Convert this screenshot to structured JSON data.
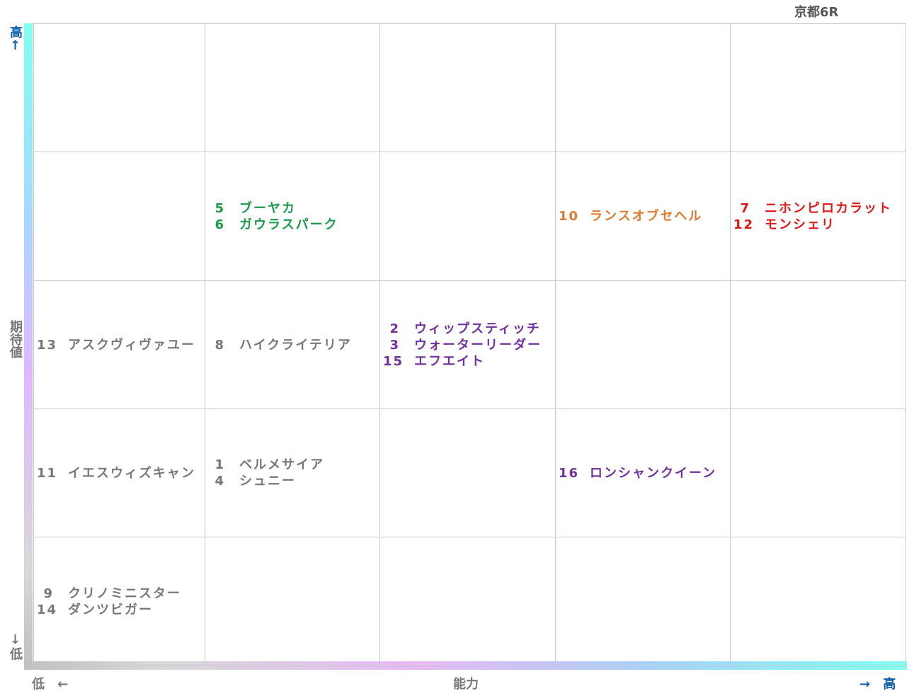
{
  "title": "京都6R",
  "y_axis": {
    "high": "高↑",
    "label": "期待値",
    "low": "↓低"
  },
  "x_axis": {
    "low": "低 ←",
    "label": "能力",
    "high": "→ 高"
  },
  "grid": {
    "rows": [
      [
        [],
        [],
        [],
        [],
        []
      ],
      [
        [],
        [
          {
            "number": 5,
            "name": "ブーヤカ",
            "color": "#1a9a4a"
          },
          {
            "number": 6,
            "name": "ガウラスパーク",
            "color": "#1a9a4a"
          }
        ],
        [],
        [
          {
            "number": 10,
            "name": "ランスオブセヘル",
            "color": "#e07a30"
          }
        ],
        [
          {
            "number": 7,
            "name": "ニホンピロカラット",
            "color": "#e01818"
          },
          {
            "number": 12,
            "name": "モンシェリ",
            "color": "#e01818"
          }
        ]
      ],
      [
        [
          {
            "number": 13,
            "name": "アスクヴィヴァユー",
            "color": "#777777"
          }
        ],
        [
          {
            "number": 8,
            "name": "ハイクライテリア",
            "color": "#777777"
          }
        ],
        [
          {
            "number": 2,
            "name": "ウィップスティッチ",
            "color": "#7030a0"
          },
          {
            "number": 3,
            "name": "ウォーターリーダー",
            "color": "#7030a0"
          },
          {
            "number": 15,
            "name": "エフエイト",
            "color": "#7030a0"
          }
        ],
        [],
        []
      ],
      [
        [
          {
            "number": 11,
            "name": "イエスウィズキャン",
            "color": "#777777"
          }
        ],
        [
          {
            "number": 1,
            "name": "ベルメサイア",
            "color": "#777777"
          },
          {
            "number": 4,
            "name": "シュニー",
            "color": "#777777"
          }
        ],
        [],
        [
          {
            "number": 16,
            "name": "ロンシャンクイーン",
            "color": "#7030a0"
          }
        ],
        []
      ],
      [
        [
          {
            "number": 9,
            "name": "クリノミニスター",
            "color": "#777777"
          },
          {
            "number": 14,
            "name": "ダンツビガー",
            "color": "#777777"
          }
        ],
        [],
        [],
        [],
        []
      ]
    ]
  }
}
